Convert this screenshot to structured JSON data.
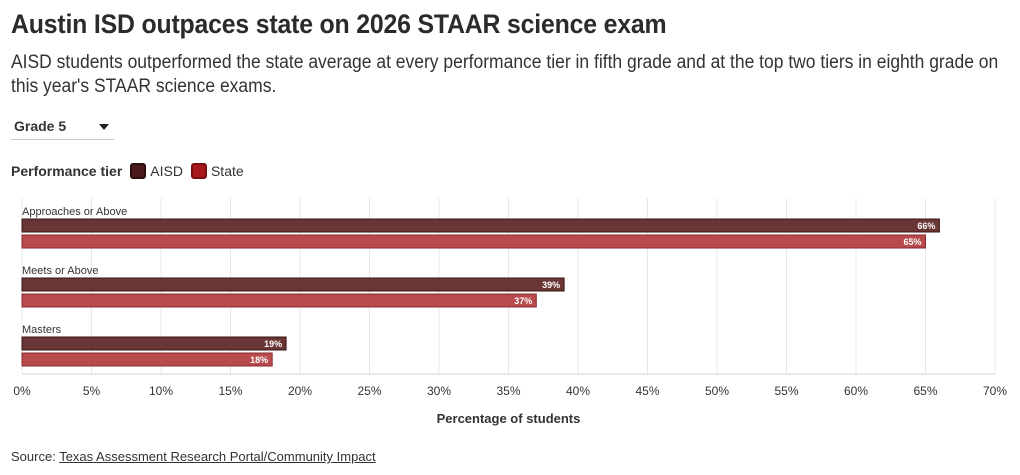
{
  "header": {
    "title": "Austin ISD outpaces state on 2026 STAAR science exam",
    "subtitle": "AISD students outperformed the state average at every performance tier in fifth grade and at the top two tiers in eighth grade on this year's STAAR science exams."
  },
  "controls": {
    "grade_select": "Grade 5"
  },
  "legend": {
    "title": "Performance tier",
    "items": [
      "AISD",
      "State"
    ]
  },
  "footer": {
    "source_prefix": "Source:",
    "source_link": "Texas Assessment Research Portal/Community Impact"
  },
  "colors": {
    "aisd": "#6a3535",
    "state": "#b84a4d"
  },
  "chart_data": {
    "type": "bar",
    "orientation": "horizontal",
    "categories": [
      "Approaches or Above",
      "Meets or Above",
      "Masters"
    ],
    "series": [
      {
        "name": "AISD",
        "values": [
          66,
          39,
          19
        ]
      },
      {
        "name": "State",
        "values": [
          65,
          37,
          18
        ]
      }
    ],
    "value_suffix": "%",
    "xlabel": "Percentage of students",
    "xlim": [
      0,
      70
    ],
    "xticks": [
      0,
      5,
      10,
      15,
      20,
      25,
      30,
      35,
      40,
      45,
      50,
      55,
      60,
      65,
      70
    ],
    "grid": true,
    "legend_position": "top-left"
  }
}
